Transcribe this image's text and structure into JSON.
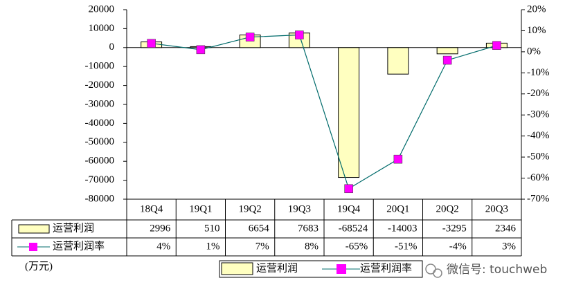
{
  "chart_data": {
    "type": "bar",
    "categories": [
      "18Q4",
      "19Q1",
      "19Q2",
      "19Q3",
      "19Q4",
      "20Q1",
      "20Q2",
      "20Q3"
    ],
    "series": [
      {
        "name": "运营利润",
        "type": "bar",
        "color": "#ffffc0",
        "values": [
          2996,
          510,
          6654,
          7683,
          -68524,
          -14003,
          -3295,
          2346
        ]
      },
      {
        "name": "运营利润率",
        "type": "line",
        "axis": "y2",
        "color": "#ff00ff",
        "line_color": "#006b6b",
        "values": [
          4,
          1,
          7,
          8,
          -65,
          -51,
          -4,
          3
        ],
        "value_labels": [
          "4%",
          "1%",
          "7%",
          "8%",
          "-65%",
          "-51%",
          "-4%",
          "3%"
        ]
      }
    ],
    "ylim": [
      -80000,
      20000
    ],
    "yticks": [
      20000,
      10000,
      0,
      -10000,
      -20000,
      -30000,
      -40000,
      -50000,
      -60000,
      -70000,
      -80000
    ],
    "y2lim": [
      -70,
      20
    ],
    "y2ticks": [
      {
        "value": 20,
        "label": "20%"
      },
      {
        "value": 10,
        "label": "10%"
      },
      {
        "value": 0,
        "label": "0%"
      },
      {
        "value": -10,
        "label": "-10%"
      },
      {
        "value": -20,
        "label": "-20%"
      },
      {
        "value": -30,
        "label": "-30%"
      },
      {
        "value": -40,
        "label": "-40%"
      },
      {
        "value": -50,
        "label": "-50%"
      },
      {
        "value": -60,
        "label": "-60%"
      },
      {
        "value": -70,
        "label": "-70%"
      }
    ],
    "unit_label": "(万元)",
    "watermark": "微信号: touchweb"
  }
}
